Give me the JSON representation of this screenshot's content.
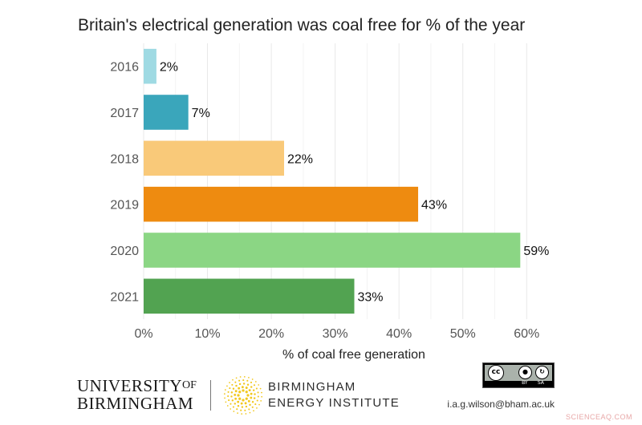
{
  "chart_data": {
    "type": "bar",
    "orientation": "horizontal",
    "title": "Britain's electrical generation was coal free for % of the year",
    "categories": [
      "2016",
      "2017",
      "2018",
      "2019",
      "2020",
      "2021"
    ],
    "values": [
      2,
      7,
      22,
      43,
      59,
      33
    ],
    "value_labels": [
      "2%",
      "7%",
      "22%",
      "43%",
      "59%",
      "33%"
    ],
    "colors": [
      "#9fdae3",
      "#3aa6bb",
      "#f9c979",
      "#ee8b10",
      "#8bd684",
      "#52a351"
    ],
    "xlabel": "% of coal free generation",
    "ylabel": "",
    "xlim": [
      0,
      66
    ],
    "x_ticks": [
      0,
      10,
      20,
      30,
      40,
      50,
      60
    ],
    "x_tick_labels": [
      "0%",
      "10%",
      "20%",
      "30%",
      "40%",
      "50%",
      "60%"
    ],
    "grid": true,
    "legend": "none"
  },
  "footer": {
    "university": {
      "line1": "UNIVERSITY",
      "of": "OF",
      "line2": "BIRMINGHAM"
    },
    "institute": {
      "line1": "BIRMINGHAM",
      "line2": "ENERGY INSTITUTE"
    },
    "license": {
      "badge": "cc",
      "by": "BY",
      "sa": "SA"
    },
    "contact": "i.a.g.wilson@bham.ac.uk",
    "watermark": "SCIENCEAQ.COM"
  }
}
